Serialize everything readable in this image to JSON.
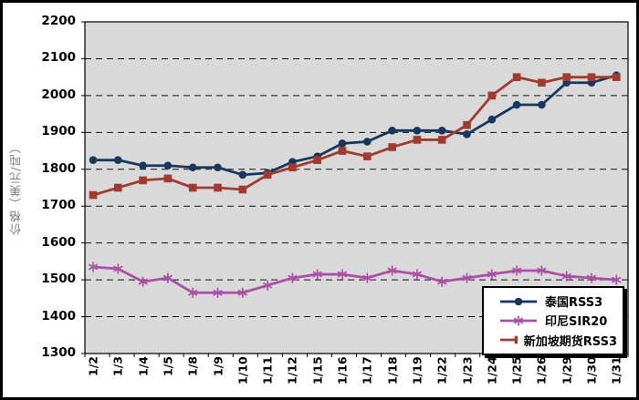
{
  "chart_data": {
    "type": "line",
    "title": "",
    "xlabel": "",
    "ylabel": "价格（美元/吨）",
    "ylim": [
      1300,
      2200
    ],
    "ytick_step": 100,
    "grid": "horizontal-dashed",
    "legend_position": "bottom-right",
    "plot_bg_color": "#d9d9d9",
    "categories": [
      "1/2",
      "1/3",
      "1/4",
      "1/5",
      "1/8",
      "1/9",
      "1/10",
      "1/11",
      "1/12",
      "1/15",
      "1/16",
      "1/17",
      "1/18",
      "1/19",
      "1/22",
      "1/23",
      "1/24",
      "1/25",
      "1/26",
      "1/29",
      "1/30",
      "1/31"
    ],
    "series": [
      {
        "name": "泰国RSS3",
        "color": "#17375e",
        "marker": "circle",
        "values": [
          1825,
          1825,
          1810,
          1810,
          1805,
          1805,
          1785,
          1790,
          1820,
          1835,
          1870,
          1875,
          1905,
          1905,
          1905,
          1895,
          1935,
          1975,
          1975,
          2035,
          2035,
          2055
        ]
      },
      {
        "name": "印尼SIR20",
        "color": "#ab4fa6",
        "marker": "asterisk",
        "values": [
          1535,
          1530,
          1495,
          1505,
          1465,
          1465,
          1465,
          1485,
          1505,
          1515,
          1515,
          1505,
          1525,
          1515,
          1495,
          1505,
          1515,
          1525,
          1525,
          1510,
          1505,
          1500
        ]
      },
      {
        "name": "新加坡期货RSS3",
        "color": "#a23b2d",
        "marker": "square",
        "values": [
          1730,
          1750,
          1770,
          1775,
          1750,
          1750,
          1745,
          1785,
          1805,
          1825,
          1850,
          1835,
          1860,
          1880,
          1880,
          1920,
          2000,
          2050,
          2035,
          2050,
          2050,
          2050
        ]
      }
    ]
  }
}
